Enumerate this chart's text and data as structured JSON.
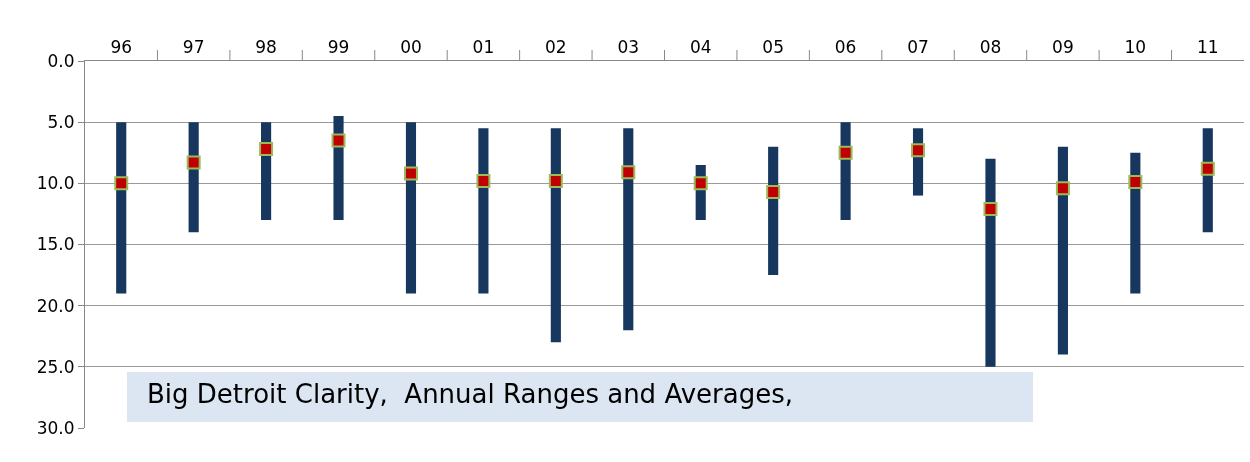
{
  "chart_data": {
    "type": "bar",
    "categories": [
      "96",
      "97",
      "98",
      "99",
      "00",
      "01",
      "02",
      "03",
      "04",
      "05",
      "06",
      "07",
      "08",
      "09",
      "10",
      "11"
    ],
    "series": [
      {
        "color": "#17375e",
        "base": [
          5,
          5,
          5,
          4.5,
          5,
          5.5,
          5.5,
          5.5,
          8.5,
          7,
          5,
          5.5,
          8,
          7,
          7.5,
          5.5
        ],
        "values": [
          14,
          9,
          8,
          8.5,
          14,
          13.5,
          17.5,
          16.5,
          4.5,
          10.5,
          8,
          5.5,
          17,
          17,
          11.5,
          8.5
        ]
      },
      {
        "type": "scatter",
        "color": "#c00000",
        "values": [
          10,
          8.3,
          7.2,
          6.5,
          9.2,
          9.8,
          9.8,
          9.1,
          10,
          10.7,
          7.5,
          7.3,
          12.1,
          10.4,
          9.9,
          8.8
        ]
      }
    ],
    "marker": "square",
    "ylim": [
      30,
      0
    ],
    "yticks": [
      {
        "value": 0,
        "label": "0.0"
      },
      {
        "value": 5,
        "label": "5.0"
      },
      {
        "value": 10,
        "label": "10.0"
      },
      {
        "value": 15,
        "label": "15.0"
      },
      {
        "value": 20,
        "label": "20.0"
      },
      {
        "value": 25,
        "label": "25.0"
      },
      {
        "value": 30,
        "label": "30.0"
      }
    ],
    "grid": "y",
    "legend": false,
    "annotations": [
      "Big Detroit Clarity,  Annual Ranges and Averages,"
    ]
  }
}
